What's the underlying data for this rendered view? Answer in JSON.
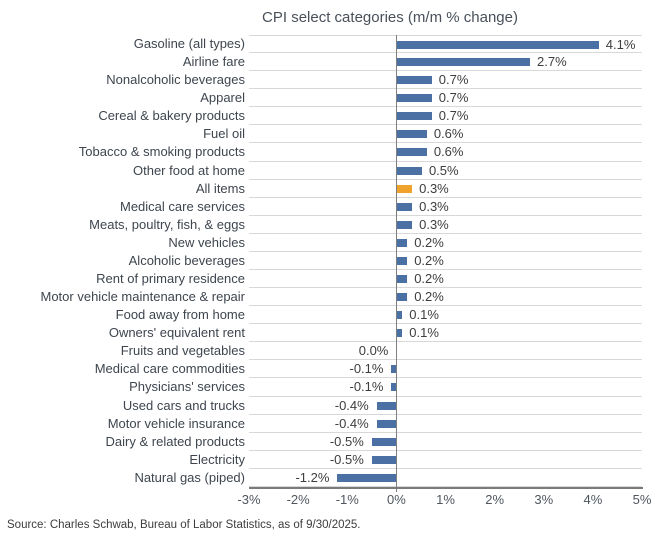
{
  "chart_data": {
    "type": "bar",
    "orientation": "horizontal",
    "title": "CPI select categories (m/m % change)",
    "categories": [
      "Gasoline (all types)",
      "Airline fare",
      "Nonalcoholic beverages",
      "Apparel",
      "Cereal & bakery products",
      "Fuel oil",
      "Tobacco & smoking products",
      "Other food at home",
      "All items",
      "Medical care services",
      "Meats, poultry, fish, & eggs",
      "New vehicles",
      "Alcoholic beverages",
      "Rent of primary residence",
      "Motor vehicle maintenance & repair",
      "Food away from home",
      "Owners' equivalent rent",
      "Fruits and vegetables",
      "Medical care commodities",
      "Physicians' services",
      "Used cars and trucks",
      "Motor vehicle insurance",
      "Dairy & related products",
      "Electricity",
      "Natural gas (piped)"
    ],
    "values": [
      4.1,
      2.7,
      0.7,
      0.7,
      0.7,
      0.6,
      0.6,
      0.5,
      0.3,
      0.3,
      0.3,
      0.2,
      0.2,
      0.2,
      0.2,
      0.1,
      0.1,
      0.0,
      -0.1,
      -0.1,
      -0.4,
      -0.4,
      -0.5,
      -0.5,
      -1.2
    ],
    "value_labels": [
      "4.1%",
      "2.7%",
      "0.7%",
      "0.7%",
      "0.7%",
      "0.6%",
      "0.6%",
      "0.5%",
      "0.3%",
      "0.3%",
      "0.3%",
      "0.2%",
      "0.2%",
      "0.2%",
      "0.2%",
      "0.1%",
      "0.1%",
      "0.0%",
      "-0.1%",
      "-0.1%",
      "-0.4%",
      "-0.4%",
      "-0.5%",
      "-0.5%",
      "-1.2%"
    ],
    "highlight_category": "All items",
    "highlight_index": 8,
    "colors": {
      "bar": "#4a70a4",
      "highlight": "#efa32d",
      "gridline": "#d8d8d8",
      "zero_line": "#7f7f7f",
      "axis_line": "#7a7a7a"
    },
    "x_axis": {
      "min": -3,
      "max": 5,
      "tick_labels": [
        "-3%",
        "-2%",
        "-1%",
        "0%",
        "1%",
        "2%",
        "3%",
        "4%",
        "5%"
      ],
      "grid": "row-separator horizontal gridlines"
    },
    "legend": "none"
  },
  "footer": {
    "source": "Source: Charles Schwab, Bureau of Labor Statistics, as of 9/30/2025."
  }
}
